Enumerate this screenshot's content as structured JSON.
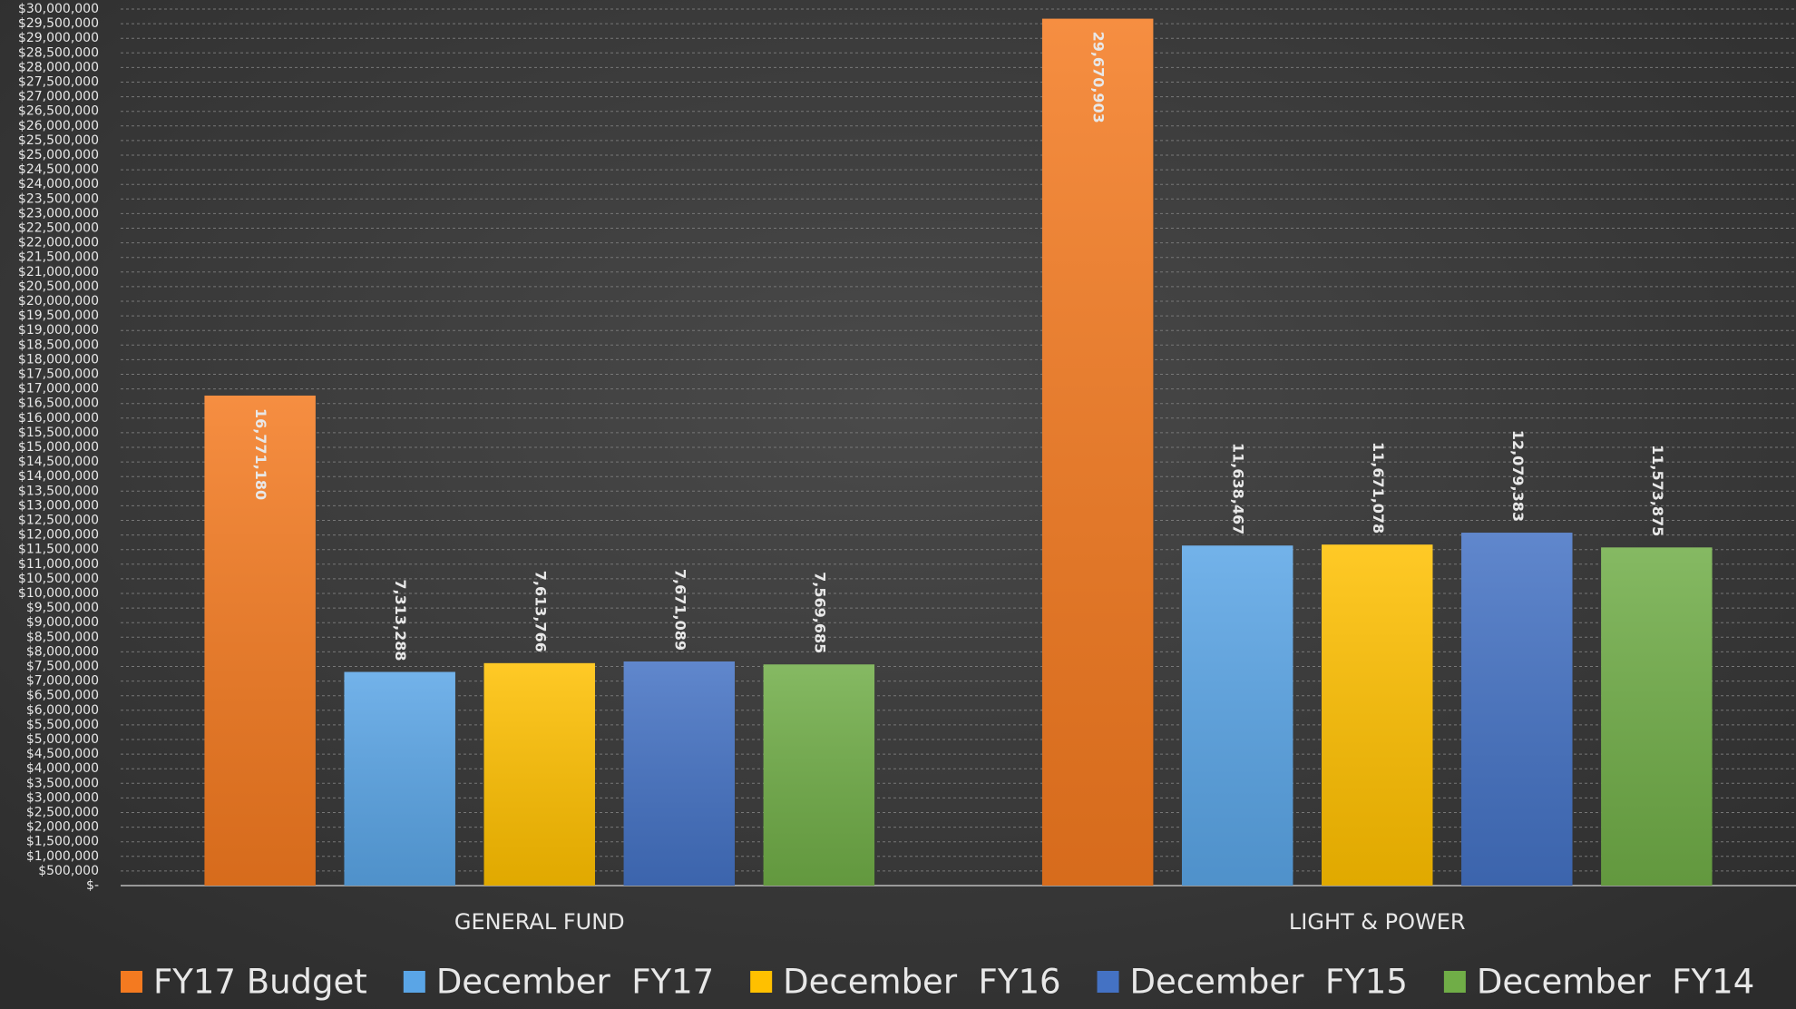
{
  "chart_data": {
    "type": "bar",
    "categories": [
      "GENERAL FUND",
      "LIGHT & POWER"
    ],
    "series": [
      {
        "name": "FY17 Budget",
        "color": "#f47a20",
        "values": [
          16771180,
          29670903
        ],
        "value_labels": [
          "16,771,180",
          "29,670,903"
        ]
      },
      {
        "name": "December  FY17",
        "color": "#5aa5e6",
        "values": [
          7313288,
          11638467
        ],
        "value_labels": [
          "7,313,288",
          "11,638,467"
        ]
      },
      {
        "name": "December  FY16",
        "color": "#ffc000",
        "values": [
          7613766,
          11671078
        ],
        "value_labels": [
          "7,613,766",
          "11,671,078"
        ]
      },
      {
        "name": "December  FY15",
        "color": "#4472c4",
        "values": [
          7671089,
          12079383
        ],
        "value_labels": [
          "7,671,089",
          "12,079,383"
        ]
      },
      {
        "name": "December  FY14",
        "color": "#70ad47",
        "values": [
          7569685,
          11573875
        ],
        "value_labels": [
          "7,569,685",
          "11,573,875"
        ]
      }
    ],
    "ylim": [
      0,
      30000000
    ],
    "yticks": [
      {
        "value": 0,
        "label": "$-"
      },
      {
        "value": 500000,
        "label": "$500,000"
      },
      {
        "value": 1000000,
        "label": "$1,000,000"
      },
      {
        "value": 1500000,
        "label": "$1,500,000"
      },
      {
        "value": 2000000,
        "label": "$2,000,000"
      },
      {
        "value": 2500000,
        "label": "$2,500,000"
      },
      {
        "value": 3000000,
        "label": "$3,000,000"
      },
      {
        "value": 3500000,
        "label": "$3,500,000"
      },
      {
        "value": 4000000,
        "label": "$4,000,000"
      },
      {
        "value": 4500000,
        "label": "$4,500,000"
      },
      {
        "value": 5000000,
        "label": "$5,000,000"
      },
      {
        "value": 5500000,
        "label": "$5,500,000"
      },
      {
        "value": 6000000,
        "label": "$6,000,000"
      },
      {
        "value": 6500000,
        "label": "$6,500,000"
      },
      {
        "value": 7000000,
        "label": "$7,000,000"
      },
      {
        "value": 7500000,
        "label": "$7,500,000"
      },
      {
        "value": 8000000,
        "label": "$8,000,000"
      },
      {
        "value": 8500000,
        "label": "$8,500,000"
      },
      {
        "value": 9000000,
        "label": "$9,000,000"
      },
      {
        "value": 9500000,
        "label": "$9,500,000"
      },
      {
        "value": 10000000,
        "label": "$10,000,000"
      },
      {
        "value": 10500000,
        "label": "$10,500,000"
      },
      {
        "value": 11000000,
        "label": "$11,000,000"
      },
      {
        "value": 11500000,
        "label": "$11,500,000"
      },
      {
        "value": 12000000,
        "label": "$12,000,000"
      },
      {
        "value": 12500000,
        "label": "$12,500,000"
      },
      {
        "value": 13000000,
        "label": "$13,000,000"
      },
      {
        "value": 13500000,
        "label": "$13,500,000"
      },
      {
        "value": 14000000,
        "label": "$14,000,000"
      },
      {
        "value": 14500000,
        "label": "$14,500,000"
      },
      {
        "value": 15000000,
        "label": "$15,000,000"
      },
      {
        "value": 15500000,
        "label": "$15,500,000"
      },
      {
        "value": 16000000,
        "label": "$16,000,000"
      },
      {
        "value": 16500000,
        "label": "$16,500,000"
      },
      {
        "value": 17000000,
        "label": "$17,000,000"
      },
      {
        "value": 17500000,
        "label": "$17,500,000"
      },
      {
        "value": 18000000,
        "label": "$18,000,000"
      },
      {
        "value": 18500000,
        "label": "$18,500,000"
      },
      {
        "value": 19000000,
        "label": "$19,000,000"
      },
      {
        "value": 19500000,
        "label": "$19,500,000"
      },
      {
        "value": 20000000,
        "label": "$20,000,000"
      },
      {
        "value": 20500000,
        "label": "$20,500,000"
      },
      {
        "value": 21000000,
        "label": "$21,000,000"
      },
      {
        "value": 21500000,
        "label": "$21,500,000"
      },
      {
        "value": 22000000,
        "label": "$22,000,000"
      },
      {
        "value": 22500000,
        "label": "$22,500,000"
      },
      {
        "value": 23000000,
        "label": "$23,000,000"
      },
      {
        "value": 23500000,
        "label": "$23,500,000"
      },
      {
        "value": 24000000,
        "label": "$24,000,000"
      },
      {
        "value": 24500000,
        "label": "$24,500,000"
      },
      {
        "value": 25000000,
        "label": "$25,000,000"
      },
      {
        "value": 25500000,
        "label": "$25,500,000"
      },
      {
        "value": 26000000,
        "label": "$26,000,000"
      },
      {
        "value": 26500000,
        "label": "$26,500,000"
      },
      {
        "value": 27000000,
        "label": "$27,000,000"
      },
      {
        "value": 27500000,
        "label": "$27,500,000"
      },
      {
        "value": 28000000,
        "label": "$28,000,000"
      },
      {
        "value": 28500000,
        "label": "$28,500,000"
      },
      {
        "value": 29000000,
        "label": "$29,000,000"
      },
      {
        "value": 29500000,
        "label": "$29,500,000"
      },
      {
        "value": 30000000,
        "label": "$30,000,000"
      }
    ],
    "grid": true,
    "legend": "bottom"
  }
}
